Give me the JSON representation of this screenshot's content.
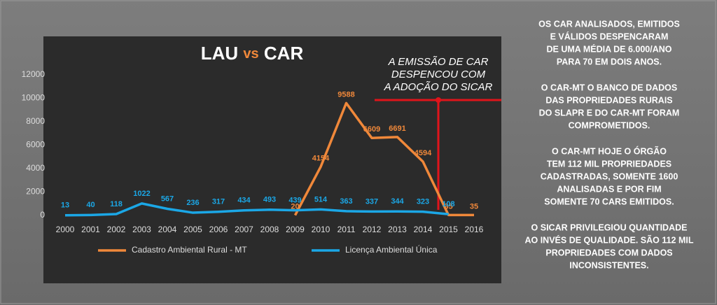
{
  "chart_data": {
    "type": "line",
    "title": [
      "LAU",
      "vs",
      "CAR"
    ],
    "categories": [
      "2000",
      "2001",
      "2002",
      "2003",
      "2004",
      "2005",
      "2006",
      "2007",
      "2008",
      "2009",
      "2010",
      "2011",
      "2012",
      "2013",
      "2014",
      "2015",
      "2016"
    ],
    "series": [
      {
        "name": "Cadastro Ambiental Rural - MT",
        "color": "#f0883a",
        "values": [
          null,
          null,
          null,
          null,
          null,
          null,
          null,
          null,
          null,
          20,
          4154,
          9588,
          6609,
          6691,
          4594,
          35,
          35
        ]
      },
      {
        "name": "Licença Ambiental Única",
        "color": "#1ba7e6",
        "values": [
          13,
          40,
          118,
          1022,
          567,
          236,
          317,
          434,
          493,
          439,
          514,
          363,
          337,
          344,
          323,
          108,
          null
        ]
      }
    ],
    "ylim": [
      0,
      12000
    ],
    "yticks": [
      0,
      2000,
      4000,
      6000,
      8000,
      10000,
      12000
    ],
    "grid": false,
    "annotation": [
      "A EMISSÃO DE CAR",
      "DESPENCOU COM",
      "A ADOÇÃO DO SICAR"
    ]
  },
  "side_text": [
    [
      "OS CAR ANALISADOS, EMITIDOS",
      "E VÁLIDOS DESPENCARAM",
      "DE UMA MÉDIA DE 6.000/ANO",
      "PARA 70 EM DOIS ANOS."
    ],
    [
      "O CAR-MT O BANCO DE DADOS",
      "DAS PROPRIEDADES RURAIS",
      "DO SLAPR E DO CAR-MT FORAM",
      "COMPROMETIDOS."
    ],
    [
      "O CAR-MT HOJE O ÓRGÃO",
      "TEM 112 MIL PROPRIEDADES",
      "CADASTRADAS, SOMENTE 1600",
      "ANALISADAS E POR FIM",
      "SOMENTE 70 CARS EMITIDOS."
    ],
    [
      "O SICAR PRIVILEGIOU QUANTIDADE",
      "AO INVÉS DE QUALIDADE. SÃO 112 MIL",
      "PROPRIEDADES COM DADOS",
      "INCONSISTENTES."
    ]
  ]
}
